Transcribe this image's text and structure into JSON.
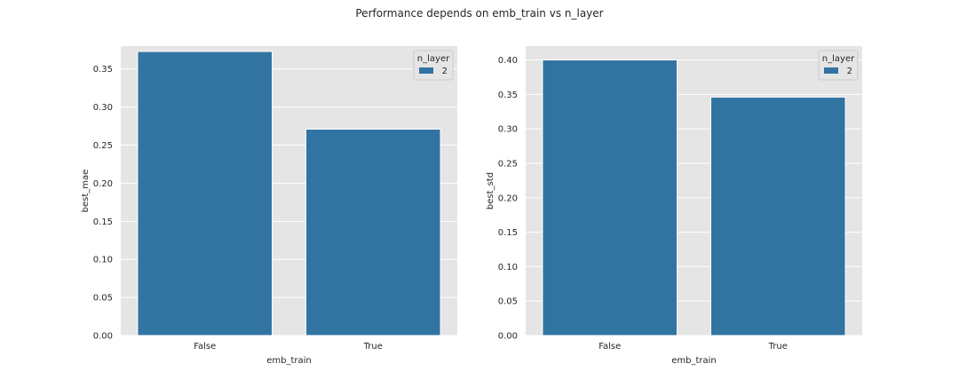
{
  "figure": {
    "suptitle": "Performance depends on emb_train vs n_layer"
  },
  "colors": {
    "axes_bg": "#e5e5e5",
    "grid": "#ffffff",
    "bar": "#3274a1",
    "legend_bg": "#e5e5e5"
  },
  "chart_data": [
    {
      "type": "bar",
      "categories": [
        "False",
        "True"
      ],
      "series": [
        {
          "name": "2",
          "values": [
            0.373,
            0.271
          ]
        }
      ],
      "xlabel": "emb_train",
      "ylabel": "best_mae",
      "ylim": [
        0,
        0.38
      ],
      "yticks": [
        0.0,
        0.05,
        0.1,
        0.15,
        0.2,
        0.25,
        0.3,
        0.35
      ],
      "ytick_labels": [
        "0.00",
        "0.05",
        "0.10",
        "0.15",
        "0.20",
        "0.25",
        "0.30",
        "0.35"
      ],
      "grid": true,
      "legend": {
        "title": "n_layer",
        "entries": [
          "2"
        ],
        "placement": "top-right"
      }
    },
    {
      "type": "bar",
      "categories": [
        "False",
        "True"
      ],
      "series": [
        {
          "name": "2",
          "values": [
            0.4,
            0.346
          ]
        }
      ],
      "xlabel": "emb_train",
      "ylabel": "best_std",
      "ylim": [
        0,
        0.42
      ],
      "yticks": [
        0.0,
        0.05,
        0.1,
        0.15,
        0.2,
        0.25,
        0.3,
        0.35,
        0.4
      ],
      "ytick_labels": [
        "0.00",
        "0.05",
        "0.10",
        "0.15",
        "0.20",
        "0.25",
        "0.30",
        "0.35",
        "0.40"
      ],
      "grid": true,
      "legend": {
        "title": "n_layer",
        "entries": [
          "2"
        ],
        "placement": "top-right"
      }
    }
  ]
}
